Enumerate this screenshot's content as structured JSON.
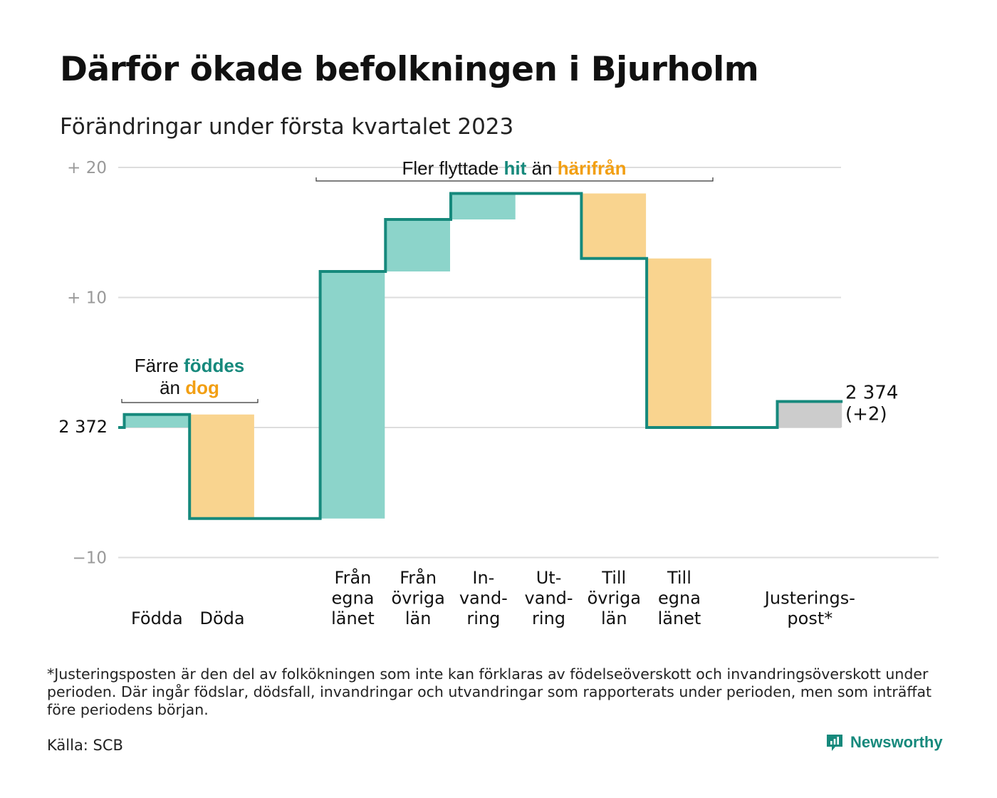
{
  "title": "Därför ökade befolkningen i Bjurholm",
  "subtitle": "Förändringar under första kvartalet 2023",
  "footnote": "*Justeringsposten är den del av folkökningen som inte kan förklaras av födelseöverskott och invandringsöverskott under perioden. Där ingår födslar, dödsfall, invandringar och utvandringar som rapporterats under perioden, men som inträffat före periodens början.",
  "source": "Källa: SCB",
  "brand": {
    "name": "Newsworthy",
    "icon": "newsworthy-logo-icon"
  },
  "colors": {
    "line": "#16897c",
    "increase": "#8cd4ca",
    "decrease": "#f9d48f",
    "adjustment": "#cccccc",
    "accent_teal": "#16897c",
    "accent_orange": "#f29f13",
    "grid": "#dddddd",
    "tick": "#999999"
  },
  "chart_data": {
    "type": "waterfall",
    "baseline_value": 2372,
    "baseline_label": "2 372",
    "end_label": "2 374",
    "end_change_label": "(+2)",
    "ylim": [
      -10,
      20
    ],
    "y_ticks": [
      {
        "value": 20,
        "label": "+ 20"
      },
      {
        "value": 10,
        "label": "+ 10"
      },
      {
        "value": 0,
        "label": ""
      },
      {
        "value": -10,
        "label": "−10"
      }
    ],
    "steps": [
      {
        "label": [
          "Födda"
        ],
        "change": 1,
        "kind": "increase",
        "slot": 0
      },
      {
        "label": [
          "Döda"
        ],
        "change": -8,
        "kind": "decrease",
        "slot": 1
      },
      {
        "label": [
          "Från",
          "egna",
          "länet"
        ],
        "change": 19,
        "kind": "increase",
        "slot": 3
      },
      {
        "label": [
          "Från",
          "övriga",
          "län"
        ],
        "change": 4,
        "kind": "increase",
        "slot": 4
      },
      {
        "label": [
          "In-",
          "vand-",
          "ring"
        ],
        "change": 2,
        "kind": "increase",
        "slot": 5
      },
      {
        "label": [
          "Ut-",
          "vand-",
          "ring"
        ],
        "change": 0,
        "kind": "decrease",
        "slot": 6
      },
      {
        "label": [
          "Till",
          "övriga",
          "län"
        ],
        "change": -5,
        "kind": "decrease",
        "slot": 7
      },
      {
        "label": [
          "Till",
          "egna",
          "länet"
        ],
        "change": -13,
        "kind": "decrease",
        "slot": 8
      },
      {
        "label": [
          "Justerings-",
          "post*"
        ],
        "change": 2,
        "kind": "adjustment",
        "slot": 10
      }
    ],
    "annotations": [
      {
        "id": "births",
        "parts": [
          [
            {
              "text": "Färre ",
              "style": "plain"
            },
            {
              "text": "föddes",
              "style": "teal"
            }
          ],
          [
            {
              "text": "än ",
              "style": "plain"
            },
            {
              "text": "dog",
              "style": "orange"
            }
          ]
        ]
      },
      {
        "id": "migration",
        "parts": [
          [
            {
              "text": "Fler flyttade ",
              "style": "plain"
            },
            {
              "text": "hit",
              "style": "teal"
            },
            {
              "text": " än ",
              "style": "plain"
            },
            {
              "text": "härifrån",
              "style": "orange"
            }
          ]
        ]
      }
    ]
  }
}
